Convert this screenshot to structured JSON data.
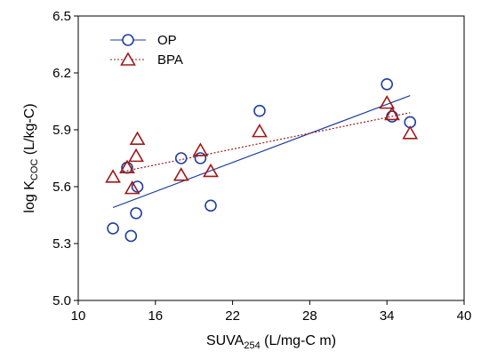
{
  "chart_data": {
    "type": "scatter",
    "xlabel": {
      "main": "SUVA",
      "sub": "254",
      "rest": " (L/mg-C m)"
    },
    "ylabel": {
      "main": "log K",
      "sub": "COC",
      "rest": " (L/kg-C)"
    },
    "xlim": [
      10,
      40
    ],
    "ylim": [
      5.0,
      6.5
    ],
    "xticks": [
      "10",
      "16",
      "22",
      "28",
      "34",
      "40"
    ],
    "yticks": [
      "5.0",
      "5.3",
      "5.6",
      "5.9",
      "6.2",
      "6.5"
    ],
    "grid": false,
    "legend_position": "top-left",
    "series": [
      {
        "name": "OP",
        "marker": "circle",
        "color": "#1f3f9e",
        "line_style": "solid",
        "x": [
          12.7,
          13.8,
          14.1,
          14.5,
          14.6,
          18.0,
          19.5,
          20.3,
          24.1,
          34.0,
          34.4,
          35.8
        ],
        "y": [
          5.38,
          5.7,
          5.34,
          5.46,
          5.6,
          5.75,
          5.75,
          5.5,
          6.0,
          6.14,
          5.97,
          5.94
        ],
        "fit": {
          "x": [
            12.7,
            35.8
          ],
          "y": [
            5.49,
            6.08
          ]
        }
      },
      {
        "name": "BPA",
        "marker": "triangle",
        "color": "#a01818",
        "line_style": "dotted",
        "x": [
          12.7,
          13.8,
          14.2,
          14.5,
          14.6,
          18.0,
          19.5,
          20.3,
          24.1,
          34.0,
          34.4,
          35.8
        ],
        "y": [
          5.65,
          5.7,
          5.59,
          5.76,
          5.85,
          5.66,
          5.79,
          5.68,
          5.89,
          6.04,
          5.98,
          5.88
        ],
        "fit": {
          "x": [
            13.5,
            35.8
          ],
          "y": [
            5.68,
            5.99
          ]
        }
      }
    ]
  }
}
